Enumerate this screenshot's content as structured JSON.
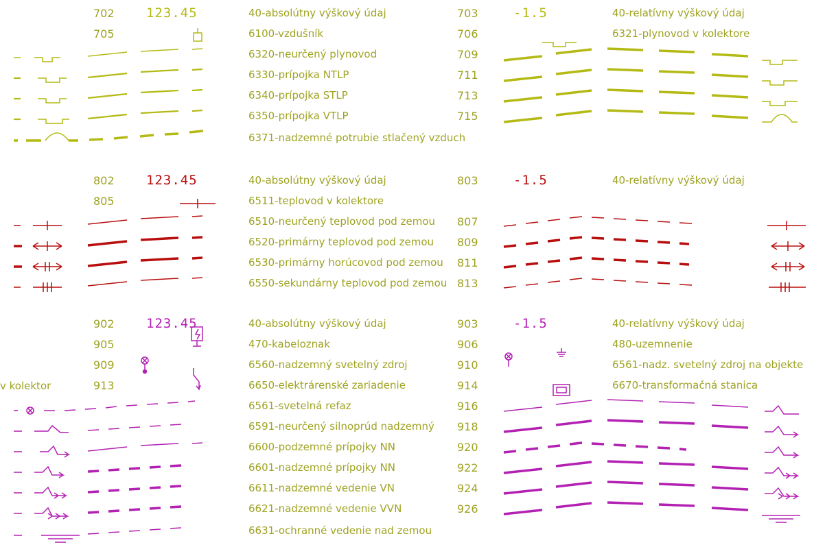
{
  "colors": {
    "yellow": "#b4ba14",
    "red": "#b80e0e",
    "magenta": "#b321b3",
    "text": "#9fa322"
  },
  "gas": {
    "left_codes": [
      "702",
      "705"
    ],
    "abs_value": "123.45",
    "rel_value": "-1.5",
    "legend": [
      {
        "label": "40-absolútny výškový údaj",
        "code": "703"
      },
      {
        "label": "6100-vzdušník",
        "code": "706"
      },
      {
        "label": "6320-neurčený plynovod",
        "code": "709"
      },
      {
        "label": "6330-prípojka NTLP",
        "code": "711"
      },
      {
        "label": "6340-prípojka STLP",
        "code": "713"
      },
      {
        "label": "6350-prípojka VTLP",
        "code": "715"
      },
      {
        "label": "6371-nadzemné potrubie stlačený vzduch",
        "code": ""
      }
    ],
    "right_labels": [
      "40-relatívny výškový údaj",
      "6321-plynovod v kolektore"
    ]
  },
  "heat": {
    "left_codes": [
      "802",
      "805"
    ],
    "abs_value": "123.45",
    "rel_value": "-1.5",
    "legend": [
      {
        "label": "40-absolútny výškový údaj",
        "code": "803"
      },
      {
        "label": "6511-teplovod v kolektore",
        "code": ""
      },
      {
        "label": "6510-neurčený teplovod pod zemou",
        "code": "807"
      },
      {
        "label": "6520-primárny teplovod pod zemou",
        "code": "809"
      },
      {
        "label": "6530-primárny horúcovod pod zemou",
        "code": "811"
      },
      {
        "label": "6550-sekundárny teplovod pod zemou",
        "code": "813"
      }
    ],
    "right_labels": [
      "40-relatívny výškový údaj"
    ]
  },
  "power": {
    "left_codes": [
      "902",
      "905",
      "909",
      "913"
    ],
    "left_fragment": "v kolektor",
    "abs_value": "123.45",
    "rel_value": "-1.5",
    "legend": [
      {
        "label": "40-absolútny výškový údaj",
        "code": "903"
      },
      {
        "label": "470-kabeloznak",
        "code": "906"
      },
      {
        "label": "6560-nadzemný svetelný zdroj",
        "code": "910"
      },
      {
        "label": "6650-elektrárenské zariadenie",
        "code": "914"
      },
      {
        "label": "6561-svetelná refaz",
        "code": "916"
      },
      {
        "label": "6591-neurčený silnoprúd nadzemný",
        "code": "918"
      },
      {
        "label": "6600-podzemné prípojky NN",
        "code": "920"
      },
      {
        "label": "6601-nadzemné prípojky NN",
        "code": "922"
      },
      {
        "label": "6611-nadzemné vedenie VN",
        "code": "924"
      },
      {
        "label": "6621-nadzemné vedenie VVN",
        "code": "926"
      },
      {
        "label": "6631-ochranné vedenie nad zemou",
        "code": ""
      }
    ],
    "right_labels": [
      "40-relatívny výškový údaj",
      "480-uzemnenie",
      "6561-nadz. svetelný zdroj na objekte",
      "6670-transformačná stanica"
    ]
  }
}
